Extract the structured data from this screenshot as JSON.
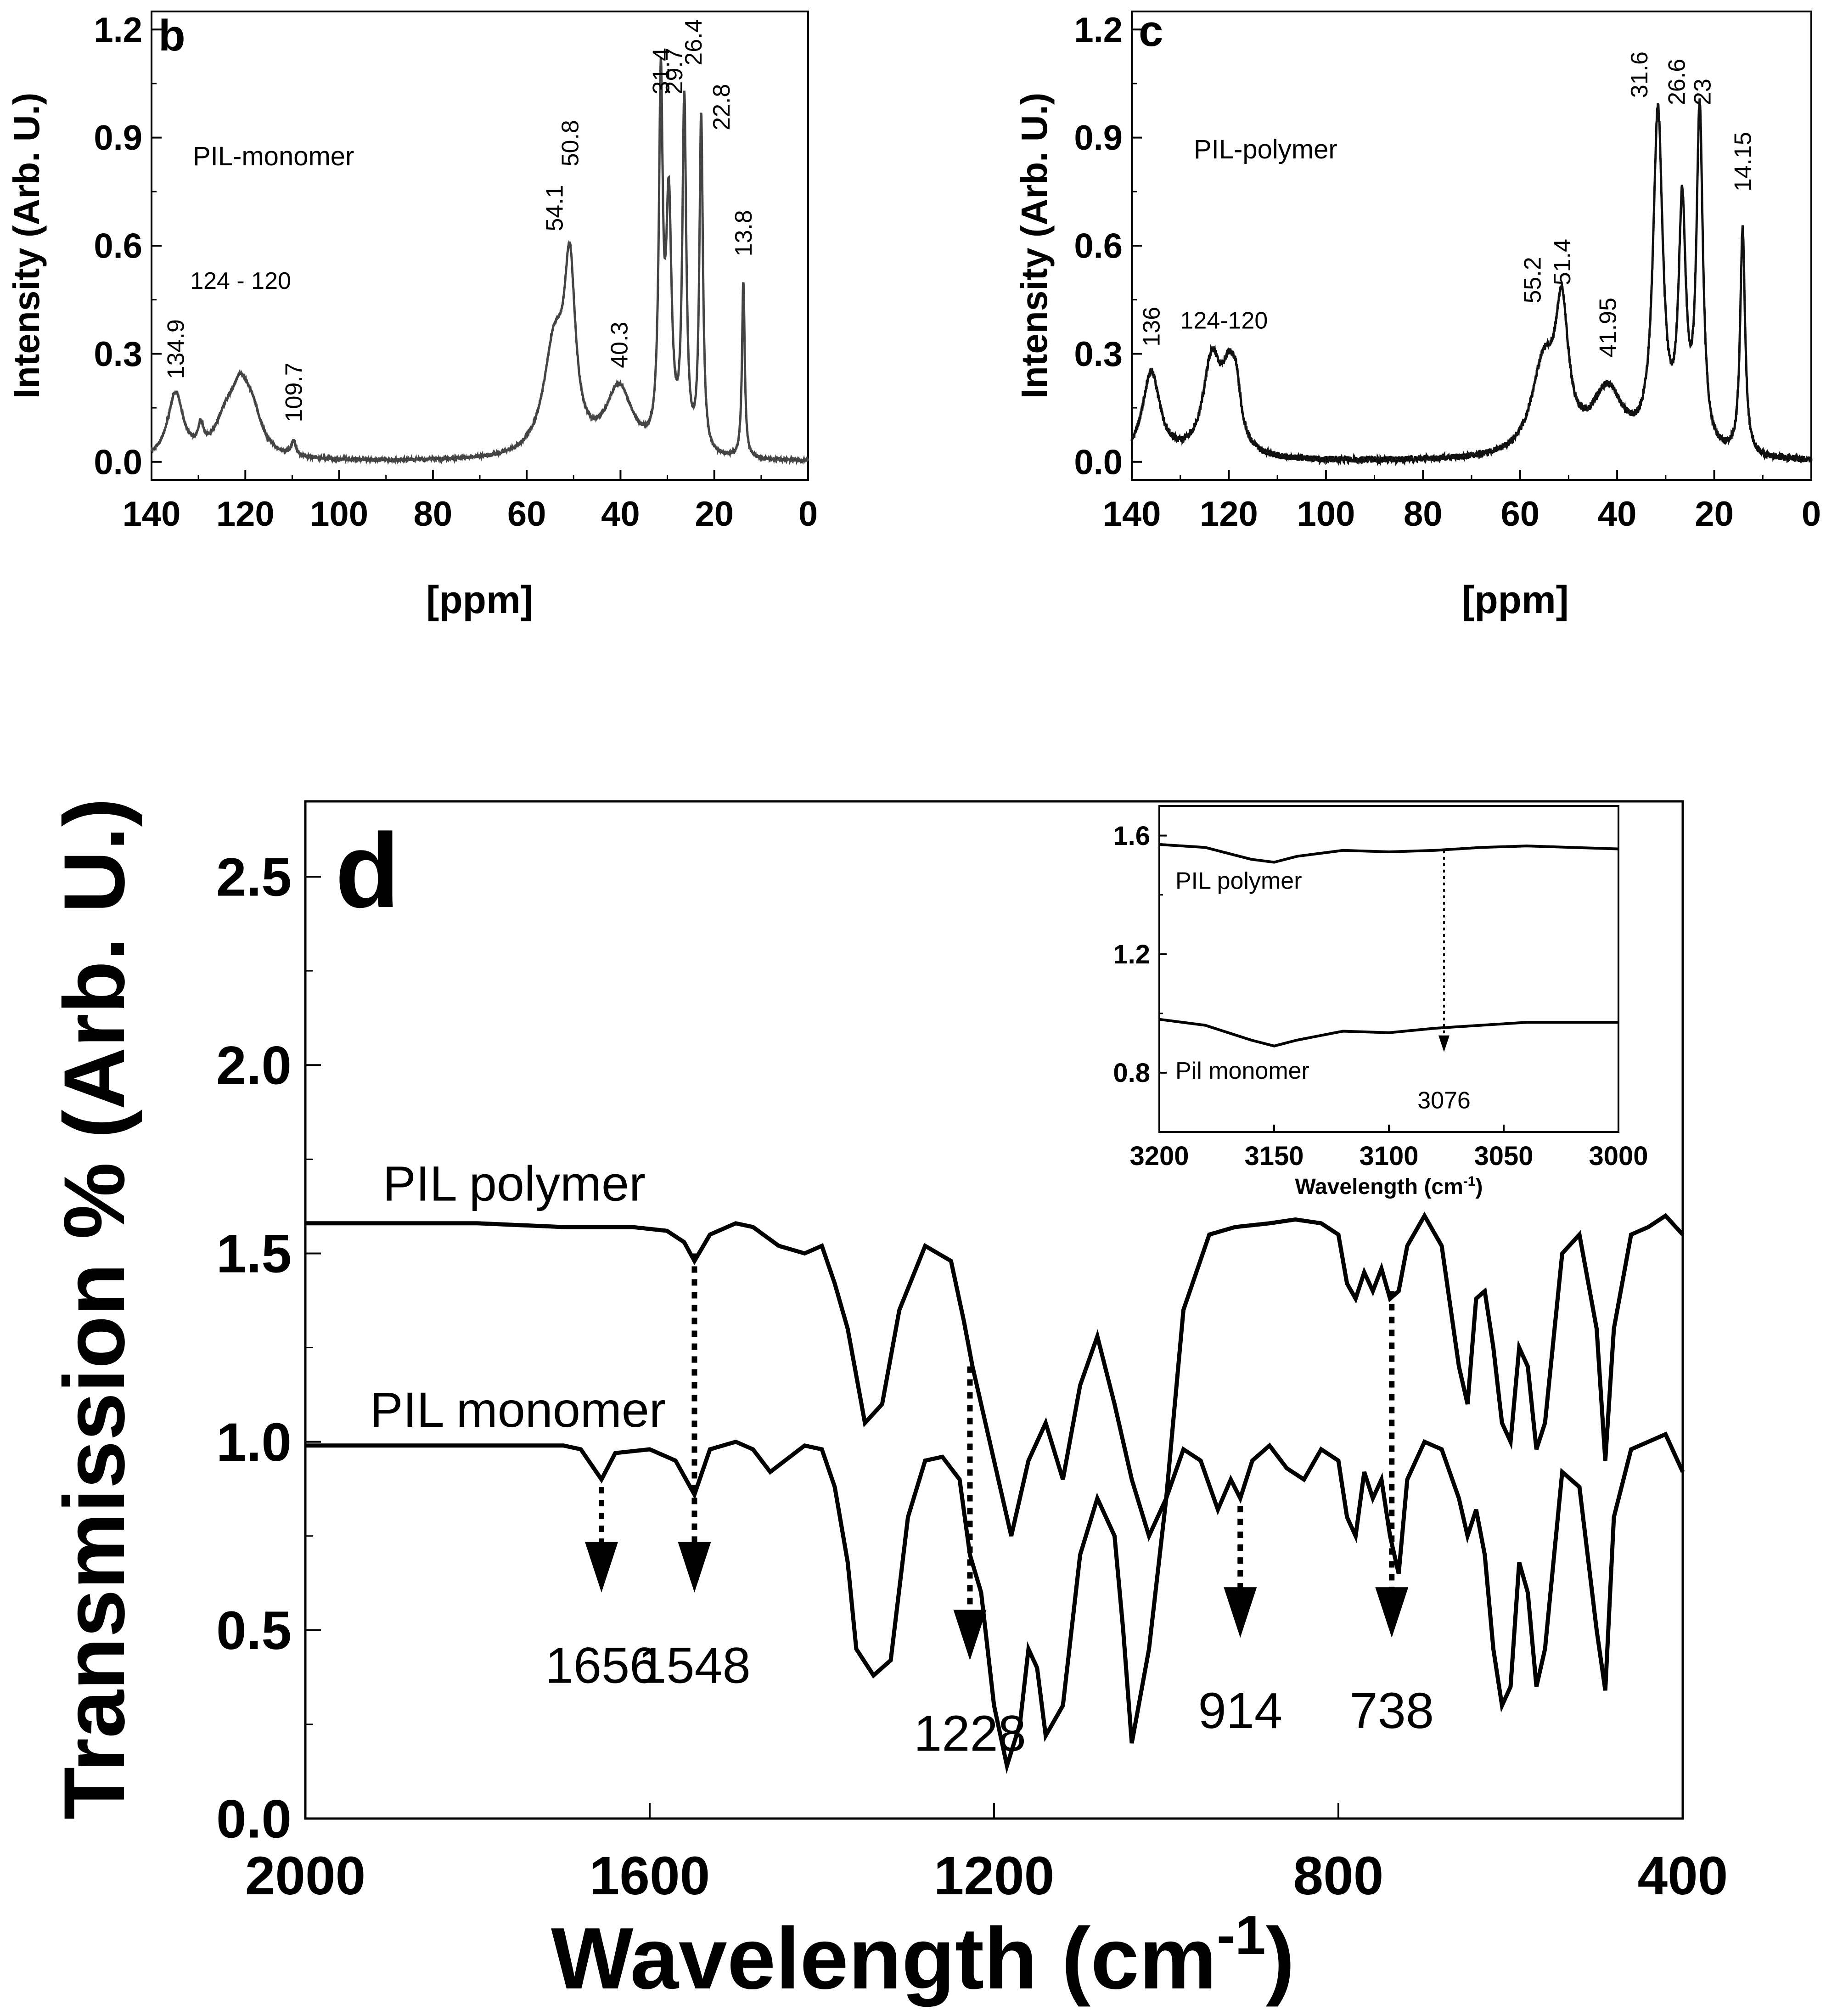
{
  "chart_data": [
    {
      "id": "b",
      "type": "line",
      "panel_letter": "b",
      "series_label": "PIL-monomer",
      "xlabel": "[ppm]",
      "ylabel": "Intensity (Arb. U.)",
      "xlim": [
        140,
        0
      ],
      "ylim": [
        -0.05,
        1.25
      ],
      "xticks": [
        140,
        120,
        100,
        80,
        60,
        40,
        20,
        0
      ],
      "yticks": [
        0.0,
        0.3,
        0.6,
        0.9,
        1.2
      ],
      "ytick_labels": [
        "0.0",
        "0.3",
        "0.6",
        "0.9",
        "1.2"
      ],
      "peaks": [
        {
          "x": 134.9,
          "h": 0.18,
          "w": 2.0
        },
        {
          "x": 129.5,
          "h": 0.06,
          "w": 0.6
        },
        {
          "x": 124.0,
          "h": 0.1,
          "w": 3.0
        },
        {
          "x": 121.0,
          "h": 0.14,
          "w": 2.2
        },
        {
          "x": 118.5,
          "h": 0.1,
          "w": 2.5
        },
        {
          "x": 109.7,
          "h": 0.04,
          "w": 0.6
        },
        {
          "x": 54.1,
          "h": 0.3,
          "w": 2.8
        },
        {
          "x": 50.8,
          "h": 0.46,
          "w": 1.4
        },
        {
          "x": 40.3,
          "h": 0.19,
          "w": 3.5
        },
        {
          "x": 31.4,
          "h": 0.98,
          "w": 0.5
        },
        {
          "x": 29.7,
          "h": 0.66,
          "w": 0.7
        },
        {
          "x": 26.4,
          "h": 0.96,
          "w": 0.5
        },
        {
          "x": 22.8,
          "h": 0.93,
          "w": 0.45
        },
        {
          "x": 13.8,
          "h": 0.49,
          "w": 0.35
        }
      ],
      "annotations": [
        {
          "text": "134.9",
          "x": 134.9,
          "y": 0.23,
          "rotate": -90
        },
        {
          "text": "124 - 120",
          "x": 121.0,
          "y": 0.48,
          "rotate": 0
        },
        {
          "text": "109.7",
          "x": 109.7,
          "y": 0.11,
          "rotate": -90
        },
        {
          "text": "54.1",
          "x": 54.1,
          "y": 0.64,
          "rotate": -90
        },
        {
          "text": "50.8",
          "x": 50.8,
          "y": 0.82,
          "rotate": -90
        },
        {
          "text": "40.3",
          "x": 40.3,
          "y": 0.26,
          "rotate": -90
        },
        {
          "text": "31.4",
          "x": 31.4,
          "y": 1.02,
          "rotate": -90
        },
        {
          "text": "29.7",
          "x": 28.6,
          "y": 1.02,
          "rotate": -90
        },
        {
          "text": "26.4",
          "x": 24.5,
          "y": 1.1,
          "rotate": -90
        },
        {
          "text": "22.8",
          "x": 18.5,
          "y": 0.92,
          "rotate": -90
        },
        {
          "text": "13.8",
          "x": 13.8,
          "y": 0.57,
          "rotate": -90
        }
      ]
    },
    {
      "id": "c",
      "type": "line",
      "panel_letter": "c",
      "series_label": "PIL-polymer",
      "xlabel": "[ppm]",
      "ylabel": "Intensity (Arb. U.)",
      "xlim": [
        140,
        0
      ],
      "ylim": [
        -0.05,
        1.25
      ],
      "xticks": [
        140,
        120,
        100,
        80,
        60,
        40,
        20,
        0
      ],
      "yticks": [
        0.0,
        0.3,
        0.6,
        0.9,
        1.2
      ],
      "ytick_labels": [
        "0.0",
        "0.3",
        "0.6",
        "0.9",
        "1.2"
      ],
      "peaks": [
        {
          "x": 136.0,
          "h": 0.24,
          "w": 2.2
        },
        {
          "x": 123.5,
          "h": 0.26,
          "w": 2.2
        },
        {
          "x": 120.0,
          "h": 0.18,
          "w": 1.8
        },
        {
          "x": 118.5,
          "h": 0.12,
          "w": 1.2
        },
        {
          "x": 55.2,
          "h": 0.24,
          "w": 3.0
        },
        {
          "x": 51.4,
          "h": 0.36,
          "w": 1.6
        },
        {
          "x": 41.95,
          "h": 0.18,
          "w": 4.0
        },
        {
          "x": 31.6,
          "h": 0.93,
          "w": 1.2
        },
        {
          "x": 26.6,
          "h": 0.65,
          "w": 0.9
        },
        {
          "x": 23.0,
          "h": 0.93,
          "w": 0.8
        },
        {
          "x": 14.15,
          "h": 0.63,
          "w": 0.6
        }
      ],
      "annotations": [
        {
          "text": "136",
          "x": 136.0,
          "y": 0.32,
          "rotate": -90
        },
        {
          "text": "124-120",
          "x": 121.0,
          "y": 0.37,
          "rotate": 0
        },
        {
          "text": "55.2",
          "x": 57.5,
          "y": 0.44,
          "rotate": -90
        },
        {
          "text": "51.4",
          "x": 51.4,
          "y": 0.49,
          "rotate": -90
        },
        {
          "text": "41.95",
          "x": 41.95,
          "y": 0.29,
          "rotate": -90
        },
        {
          "text": "31.6",
          "x": 35.5,
          "y": 1.01,
          "rotate": -90
        },
        {
          "text": "26.6",
          "x": 27.8,
          "y": 0.99,
          "rotate": -90
        },
        {
          "text": "23",
          "x": 22.5,
          "y": 0.99,
          "rotate": -90
        },
        {
          "text": "14.15",
          "x": 14.15,
          "y": 0.75,
          "rotate": -90
        }
      ]
    },
    {
      "id": "d",
      "type": "line",
      "panel_letter": "d",
      "xlabel": "Wavelength (cm",
      "xlabel_sup": "-1",
      "xlabel_end": ")",
      "ylabel": "Transmission % (Arb. U.)",
      "xlim": [
        2000,
        400
      ],
      "ylim": [
        0.0,
        2.7
      ],
      "xticks": [
        2000,
        1600,
        1200,
        800,
        400
      ],
      "yticks": [
        0.0,
        0.5,
        1.0,
        1.5,
        2.0,
        2.5
      ],
      "ytick_labels": [
        "0.0",
        "0.5",
        "1.0",
        "1.5",
        "2.0",
        "2.5"
      ],
      "series": [
        {
          "name": "PIL polymer",
          "baseline": 1.58,
          "x": [
            2000,
            1900,
            1800,
            1700,
            1620,
            1580,
            1560,
            1548,
            1530,
            1500,
            1480,
            1450,
            1420,
            1400,
            1385,
            1370,
            1350,
            1330,
            1310,
            1280,
            1250,
            1235,
            1225,
            1215,
            1200,
            1180,
            1160,
            1140,
            1120,
            1100,
            1080,
            1060,
            1040,
            1020,
            1000,
            980,
            950,
            920,
            880,
            850,
            820,
            800,
            790,
            780,
            770,
            760,
            750,
            740,
            730,
            720,
            700,
            680,
            660,
            650,
            640,
            630,
            620,
            610,
            600,
            590,
            580,
            570,
            560,
            540,
            520,
            500,
            490,
            480,
            460,
            440,
            420,
            400
          ],
          "y": [
            1.58,
            1.58,
            1.58,
            1.57,
            1.57,
            1.56,
            1.53,
            1.48,
            1.55,
            1.58,
            1.57,
            1.52,
            1.5,
            1.52,
            1.42,
            1.3,
            1.05,
            1.1,
            1.35,
            1.52,
            1.48,
            1.32,
            1.2,
            1.1,
            0.95,
            0.75,
            0.95,
            1.05,
            0.9,
            1.15,
            1.28,
            1.1,
            0.9,
            0.75,
            0.85,
            1.35,
            1.55,
            1.57,
            1.58,
            1.59,
            1.58,
            1.55,
            1.42,
            1.38,
            1.45,
            1.4,
            1.46,
            1.38,
            1.4,
            1.52,
            1.6,
            1.52,
            1.2,
            1.1,
            1.38,
            1.4,
            1.25,
            1.05,
            1.0,
            1.25,
            1.2,
            0.98,
            1.05,
            1.5,
            1.55,
            1.3,
            0.95,
            1.3,
            1.55,
            1.57,
            1.6,
            1.55
          ]
        },
        {
          "name": "PIL monomer",
          "baseline": 0.99,
          "x": [
            2000,
            1900,
            1800,
            1700,
            1680,
            1656,
            1640,
            1600,
            1570,
            1548,
            1530,
            1500,
            1480,
            1460,
            1420,
            1400,
            1385,
            1370,
            1360,
            1340,
            1320,
            1300,
            1280,
            1260,
            1240,
            1228,
            1215,
            1200,
            1185,
            1170,
            1160,
            1150,
            1140,
            1120,
            1100,
            1080,
            1060,
            1050,
            1040,
            1020,
            1000,
            980,
            960,
            940,
            925,
            914,
            900,
            880,
            860,
            840,
            820,
            800,
            790,
            780,
            770,
            760,
            750,
            740,
            730,
            720,
            700,
            680,
            660,
            650,
            640,
            630,
            620,
            610,
            600,
            590,
            580,
            570,
            560,
            540,
            520,
            500,
            490,
            480,
            460,
            440,
            420,
            400
          ],
          "y": [
            0.99,
            0.99,
            0.99,
            0.99,
            0.98,
            0.9,
            0.97,
            0.98,
            0.95,
            0.86,
            0.98,
            1.0,
            0.98,
            0.92,
            0.99,
            0.98,
            0.88,
            0.68,
            0.45,
            0.38,
            0.42,
            0.8,
            0.95,
            0.96,
            0.9,
            0.7,
            0.6,
            0.3,
            0.14,
            0.25,
            0.45,
            0.4,
            0.22,
            0.3,
            0.7,
            0.85,
            0.75,
            0.5,
            0.2,
            0.45,
            0.85,
            0.98,
            0.95,
            0.82,
            0.9,
            0.85,
            0.95,
            0.99,
            0.93,
            0.9,
            0.98,
            0.95,
            0.8,
            0.75,
            0.92,
            0.85,
            0.9,
            0.75,
            0.65,
            0.9,
            1.0,
            0.98,
            0.85,
            0.75,
            0.82,
            0.7,
            0.45,
            0.3,
            0.35,
            0.68,
            0.6,
            0.35,
            0.45,
            0.92,
            0.88,
            0.5,
            0.34,
            0.8,
            0.98,
            1.0,
            1.02,
            0.92
          ]
        }
      ],
      "series_labels": [
        {
          "text": "PIL polymer",
          "x": 1910,
          "y": 1.64
        },
        {
          "text": "PIL monomer",
          "x": 1925,
          "y": 1.04
        }
      ],
      "markers": [
        {
          "label": "1656",
          "x": 1656,
          "y_from": 0.88,
          "y_to": 0.6,
          "label_y": 0.36
        },
        {
          "label": "1548",
          "x": 1548,
          "y_from": 1.5,
          "y_to": 0.6,
          "label_y": 0.36
        },
        {
          "label": "1228",
          "x": 1228,
          "y_from": 1.2,
          "y_to": 0.42,
          "label_y": 0.18
        },
        {
          "label": "914",
          "x": 914,
          "y_from": 0.83,
          "y_to": 0.48,
          "label_y": 0.24
        },
        {
          "label": "738",
          "x": 738,
          "y_from": 1.4,
          "y_to": 0.48,
          "label_y": 0.24
        }
      ]
    },
    {
      "id": "d-inset",
      "type": "line",
      "xlabel": "Wavelength (cm",
      "xlabel_sup": "-1",
      "xlabel_end": ")",
      "xlim": [
        3200,
        3000
      ],
      "ylim": [
        0.6,
        1.7
      ],
      "xticks": [
        3200,
        3150,
        3100,
        3050,
        3000
      ],
      "yticks": [
        0.8,
        1.2,
        1.6
      ],
      "ytick_labels": [
        "0.8",
        "1.2",
        "1.6"
      ],
      "series": [
        {
          "name": "PIL polymer",
          "x": [
            3200,
            3180,
            3160,
            3150,
            3140,
            3120,
            3100,
            3080,
            3060,
            3040,
            3020,
            3000
          ],
          "y": [
            1.57,
            1.56,
            1.52,
            1.51,
            1.53,
            1.55,
            1.545,
            1.55,
            1.56,
            1.565,
            1.56,
            1.555
          ]
        },
        {
          "name": "Pil monomer",
          "x": [
            3200,
            3180,
            3160,
            3150,
            3140,
            3120,
            3100,
            3080,
            3060,
            3040,
            3020,
            3000
          ],
          "y": [
            0.98,
            0.96,
            0.91,
            0.89,
            0.91,
            0.94,
            0.935,
            0.95,
            0.96,
            0.97,
            0.97,
            0.97
          ]
        }
      ],
      "series_labels": [
        {
          "text": "PIL polymer",
          "x": 3193,
          "y": 1.42
        },
        {
          "text": "Pil monomer",
          "x": 3193,
          "y": 0.78
        }
      ],
      "marker": {
        "label": "3076",
        "x": 3076,
        "y_from": 1.55,
        "y_to": 0.87,
        "label_y": 0.68
      }
    }
  ]
}
